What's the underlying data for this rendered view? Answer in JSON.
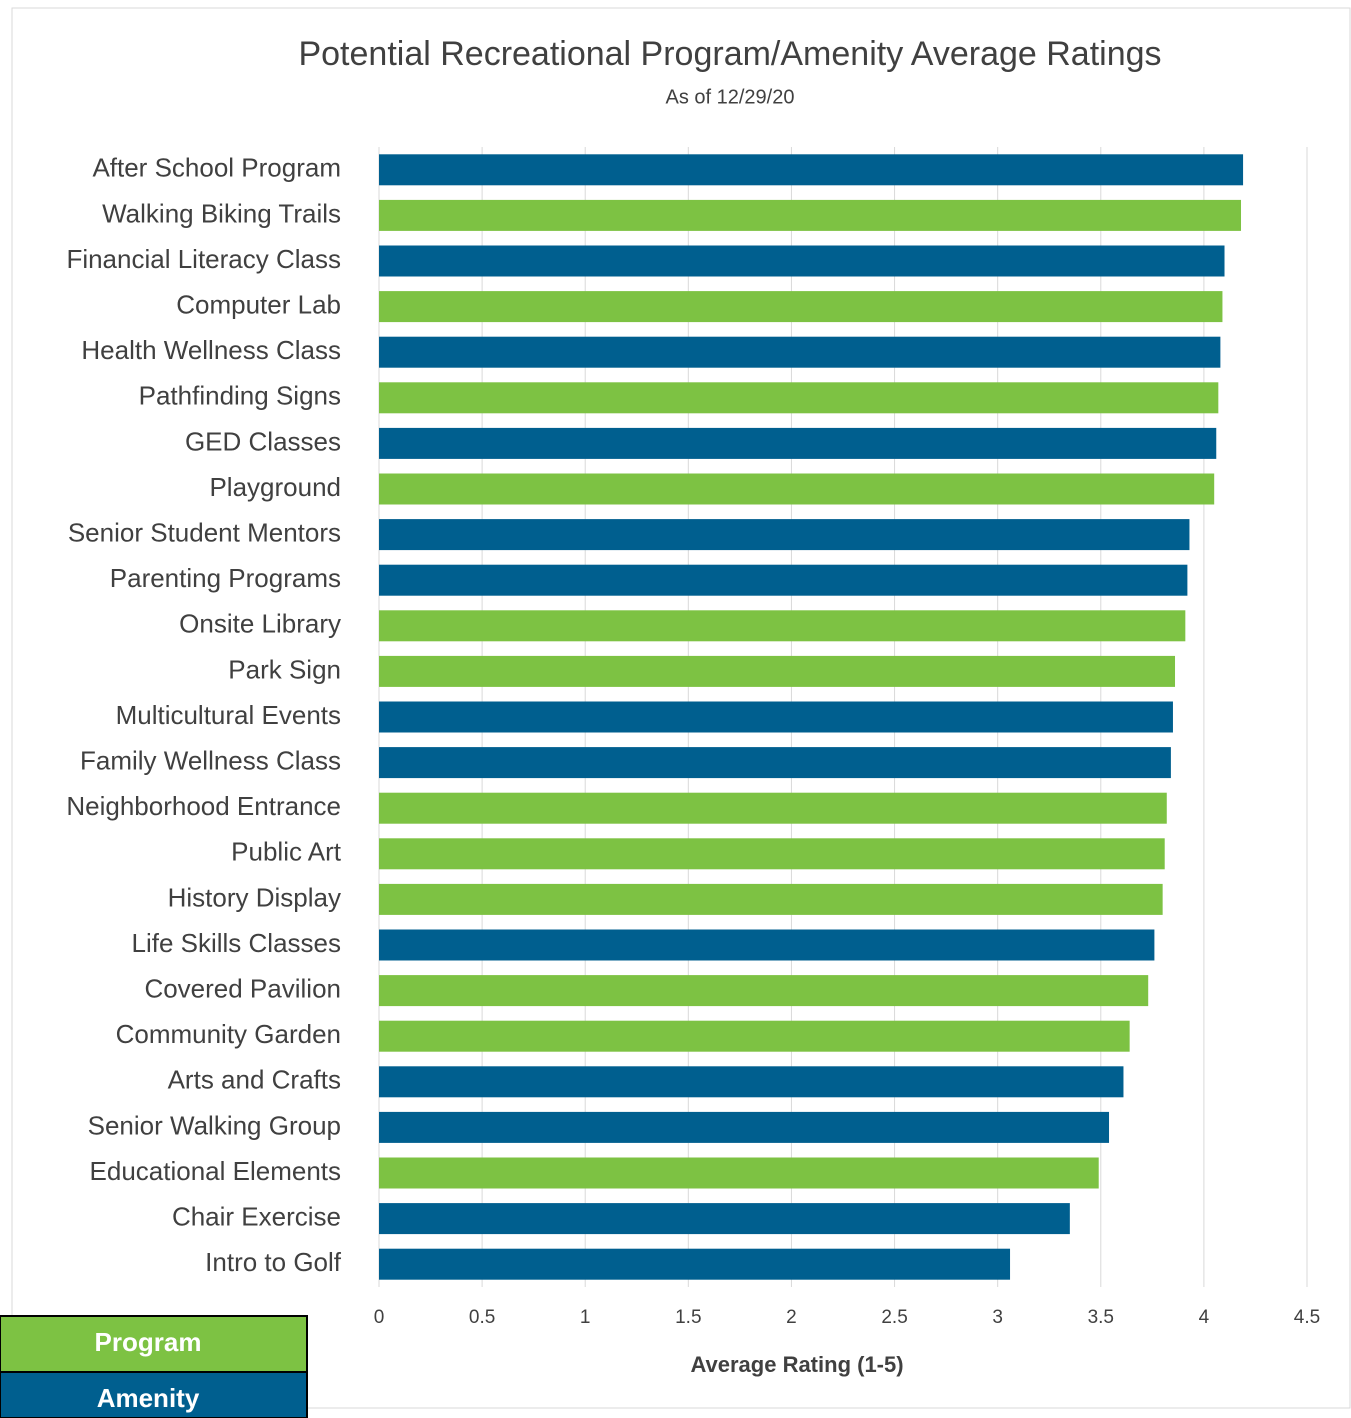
{
  "chart_data": {
    "type": "bar",
    "orientation": "horizontal",
    "title": "Potential Recreational Program/Amenity Average Ratings",
    "subtitle": "As of 12/29/20",
    "x_label": "Average Rating (1-5)",
    "categories": [
      "After School Program",
      "Walking Biking Trails",
      "Financial Literacy Class",
      "Computer Lab",
      "Health Wellness Class",
      "Pathfinding Signs",
      "GED Classes",
      "Playground",
      "Senior Student Mentors",
      "Parenting Programs",
      "Onsite Library",
      "Park Sign",
      "Multicultural Events",
      "Family Wellness Class",
      "Neighborhood Entrance",
      "Public Art",
      "History Display",
      "Life Skills Classes",
      "Covered Pavilion",
      "Community Garden",
      "Arts and Crafts",
      "Senior Walking Group",
      "Educational Elements",
      "Chair Exercise",
      "Intro to Golf"
    ],
    "values": [
      4.19,
      4.18,
      4.1,
      4.09,
      4.08,
      4.07,
      4.06,
      4.05,
      3.93,
      3.92,
      3.91,
      3.86,
      3.85,
      3.84,
      3.82,
      3.81,
      3.8,
      3.76,
      3.73,
      3.64,
      3.61,
      3.54,
      3.49,
      3.35,
      3.06
    ],
    "colors": [
      "#005f8f",
      "#7dc243",
      "#005f8f",
      "#7dc243",
      "#005f8f",
      "#7dc243",
      "#005f8f",
      "#7dc243",
      "#005f8f",
      "#005f8f",
      "#7dc243",
      "#7dc243",
      "#005f8f",
      "#005f8f",
      "#7dc243",
      "#7dc243",
      "#7dc243",
      "#005f8f",
      "#7dc243",
      "#7dc243",
      "#005f8f",
      "#005f8f",
      "#7dc243",
      "#005f8f",
      "#005f8f"
    ],
    "xlim": [
      0,
      4.5
    ],
    "xticks": [
      0,
      0.5,
      1,
      1.5,
      2,
      2.5,
      3,
      3.5,
      4,
      4.5
    ],
    "grid": true,
    "legend": [
      {
        "label": "Program",
        "color": "#7dc243"
      },
      {
        "label": "Amenity",
        "color": "#005f8f"
      }
    ]
  }
}
